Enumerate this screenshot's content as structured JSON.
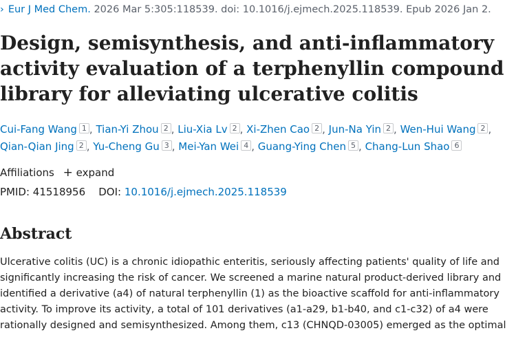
{
  "citation": {
    "journal": "Eur J Med Chem.",
    "details": "2026 Mar 5:305:118539. doi: 10.1016/j.ejmech.2025.118539. Epub 2026 Jan 2."
  },
  "title": "Design, semisynthesis, and anti-inflammatory activity evaluation of a terphenyllin compound library for alleviating ulcerative colitis",
  "authors": [
    {
      "name": "Cui-Fang Wang",
      "aff": "1"
    },
    {
      "name": "Tian-Yi Zhou",
      "aff": "2"
    },
    {
      "name": "Liu-Xia Lv",
      "aff": "2"
    },
    {
      "name": "Xi-Zhen Cao",
      "aff": "2"
    },
    {
      "name": "Jun-Na Yin",
      "aff": "2"
    },
    {
      "name": "Wen-Hui Wang",
      "aff": "2"
    },
    {
      "name": "Qian-Qian Jing",
      "aff": "2"
    },
    {
      "name": "Yu-Cheng Gu",
      "aff": "3"
    },
    {
      "name": "Mei-Yan Wei",
      "aff": "4"
    },
    {
      "name": "Guang-Ying Chen",
      "aff": "5"
    },
    {
      "name": "Chang-Lun Shao",
      "aff": "6"
    }
  ],
  "affiliations": {
    "label": "Affiliations",
    "expand_icon": "plus-icon",
    "expand_label": "expand"
  },
  "ids": {
    "pmid_label": "PMID:",
    "pmid": "41518956",
    "doi_label": "DOI:",
    "doi": "10.1016/j.ejmech.2025.118539"
  },
  "abstract": {
    "heading": "Abstract",
    "text": "Ulcerative colitis (UC) is a chronic idiopathic enteritis, seriously affecting patients' quality of life and significantly increasing the risk of cancer. We screened a marine natural product-derived library and identified a derivative (a4) of natural terphenyllin (1) as the bioactive scaffold for anti-inflammatory activity. To improve its activity, a total of 101 derivatives (a1-a29, b1-b40, and c1-c32) of a4 were rationally designed and semisynthesized. Among them, c13 (CHNQD-03005) emerged as the optimal"
  },
  "colors": {
    "link": "#0071bc",
    "text": "#212121",
    "muted": "#5b616b"
  }
}
